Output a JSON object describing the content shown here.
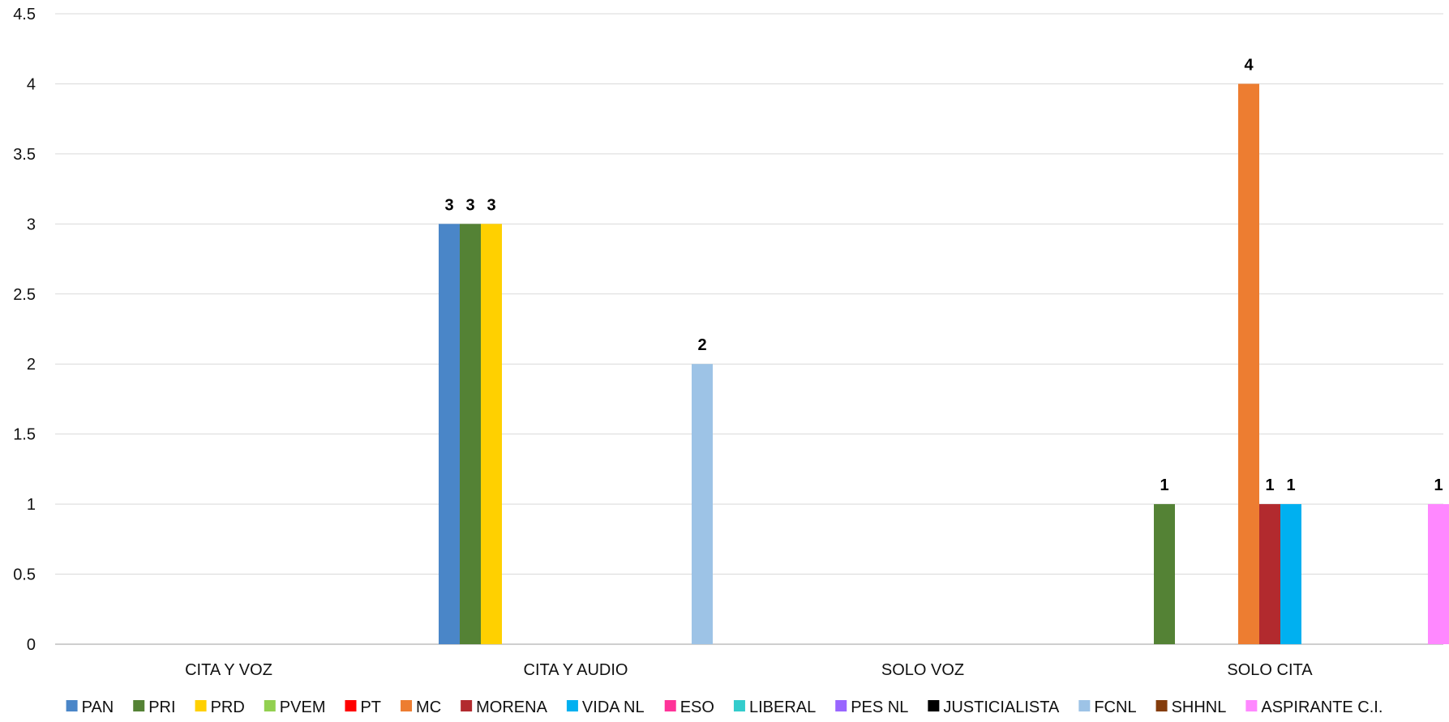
{
  "chart_data": {
    "type": "bar",
    "title": "",
    "xlabel": "",
    "ylabel": "",
    "ylim": [
      0,
      4.5
    ],
    "yticks": [
      "0",
      "0.5",
      "1",
      "1.5",
      "2",
      "2.5",
      "3",
      "3.5",
      "4",
      "4.5"
    ],
    "grid": true,
    "legend_position": "bottom",
    "categories": [
      "CITA Y VOZ",
      "CITA Y AUDIO",
      "SOLO VOZ",
      "SOLO CITA"
    ],
    "series": [
      {
        "name": "PAN",
        "color": "#4a86c8",
        "values": [
          0,
          3,
          0,
          0
        ]
      },
      {
        "name": "PRI",
        "color": "#548235",
        "values": [
          0,
          3,
          0,
          1
        ]
      },
      {
        "name": "PRD",
        "color": "#ffd000",
        "values": [
          0,
          3,
          0,
          0
        ]
      },
      {
        "name": "PVEM",
        "color": "#92d050",
        "values": [
          0,
          0,
          0,
          0
        ]
      },
      {
        "name": "PT",
        "color": "#ff0000",
        "values": [
          0,
          0,
          0,
          0
        ]
      },
      {
        "name": "MC",
        "color": "#ed7d31",
        "values": [
          0,
          0,
          0,
          4
        ]
      },
      {
        "name": "MORENA",
        "color": "#b22a2e",
        "values": [
          0,
          0,
          0,
          1
        ]
      },
      {
        "name": "VIDA NL",
        "color": "#00b0f0",
        "values": [
          0,
          0,
          0,
          1
        ]
      },
      {
        "name": "ESO",
        "color": "#ff3399",
        "values": [
          0,
          0,
          0,
          0
        ]
      },
      {
        "name": "LIBERAL",
        "color": "#33cccc",
        "values": [
          0,
          0,
          0,
          0
        ]
      },
      {
        "name": "PES NL",
        "color": "#9966ff",
        "values": [
          0,
          0,
          0,
          0
        ]
      },
      {
        "name": "JUSTICIALISTA",
        "color": "#000000",
        "values": [
          0,
          0,
          0,
          0
        ]
      },
      {
        "name": "FCNL",
        "color": "#9dc3e6",
        "values": [
          0,
          2,
          0,
          0
        ]
      },
      {
        "name": "SHHNL",
        "color": "#843c0c",
        "values": [
          0,
          0,
          0,
          0
        ]
      },
      {
        "name": "ASPIRANTE C.I.",
        "color": "#ff88ff",
        "values": [
          0,
          0,
          0,
          1
        ]
      }
    ]
  }
}
